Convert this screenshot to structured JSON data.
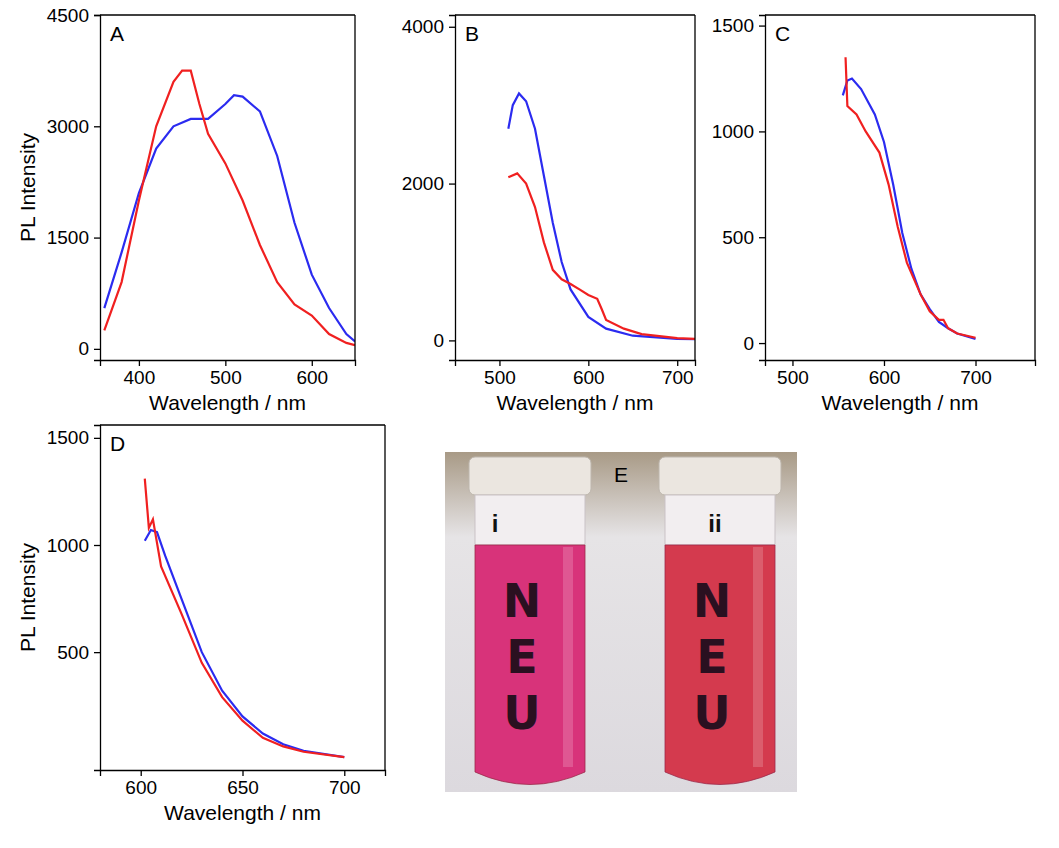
{
  "chart_data": [
    {
      "type": "line",
      "label": "A",
      "xlabel": "Wavelength / nm",
      "ylabel": "PL Intensity",
      "xlim": [
        355,
        650
      ],
      "xticks": [
        400,
        500,
        600
      ],
      "ylim": [
        -150,
        4500
      ],
      "yticks": [
        0,
        1500,
        3000,
        4500
      ],
      "series": [
        {
          "color": "#2b2bf0",
          "line_style": "solid",
          "x": [
            360,
            380,
            400,
            420,
            440,
            460,
            480,
            500,
            510,
            520,
            540,
            560,
            580,
            600,
            620,
            640,
            650
          ],
          "values": [
            550,
            1300,
            2100,
            2700,
            3000,
            3100,
            3100,
            3300,
            3420,
            3400,
            3200,
            2600,
            1700,
            1000,
            550,
            200,
            100
          ]
        },
        {
          "color": "#f02020",
          "line_style": "solid",
          "x": [
            360,
            380,
            400,
            420,
            440,
            450,
            460,
            470,
            480,
            500,
            520,
            540,
            560,
            580,
            600,
            620,
            640,
            650
          ],
          "values": [
            250,
            900,
            2000,
            3000,
            3600,
            3750,
            3750,
            3300,
            2900,
            2500,
            2000,
            1400,
            900,
            600,
            450,
            200,
            80,
            50
          ]
        }
      ]
    },
    {
      "type": "line",
      "label": "B",
      "xlabel": "Wavelength / nm",
      "xlim": [
        450,
        720
      ],
      "xticks": [
        500,
        600,
        700
      ],
      "ylim": [
        -250,
        4150
      ],
      "yticks": [
        0,
        2000,
        4000
      ],
      "series": [
        {
          "color": "#2b2bf0",
          "line_style": "solid",
          "x": [
            510,
            515,
            522,
            530,
            540,
            550,
            560,
            570,
            580,
            600,
            620,
            650,
            700,
            720
          ],
          "values": [
            2700,
            3000,
            3150,
            3050,
            2700,
            2100,
            1500,
            1000,
            650,
            300,
            150,
            60,
            20,
            15
          ]
        },
        {
          "color": "#f02020",
          "line_style": "solid",
          "x": [
            510,
            520,
            530,
            540,
            550,
            560,
            570,
            580,
            590,
            600,
            610,
            615,
            620,
            640,
            660,
            700,
            720
          ],
          "values": [
            2080,
            2130,
            2000,
            1700,
            1250,
            900,
            780,
            720,
            650,
            580,
            530,
            400,
            260,
            150,
            80,
            30,
            20
          ]
        }
      ]
    },
    {
      "type": "line",
      "label": "C",
      "xlabel": "Wavelength / nm",
      "xlim": [
        470,
        765
      ],
      "xticks": [
        500,
        600,
        700
      ],
      "ylim": [
        -80,
        1550
      ],
      "yticks": [
        0,
        500,
        1000,
        1500
      ],
      "series": [
        {
          "color": "#2b2bf0",
          "line_style": "solid",
          "x": [
            555,
            560,
            565,
            575,
            590,
            600,
            610,
            620,
            630,
            640,
            650,
            660,
            670,
            680,
            700
          ],
          "values": [
            1170,
            1240,
            1250,
            1200,
            1080,
            950,
            750,
            520,
            350,
            230,
            160,
            100,
            70,
            45,
            20
          ]
        },
        {
          "color": "#f02020",
          "line_style": "solid",
          "x": [
            558,
            560,
            570,
            580,
            595,
            605,
            615,
            625,
            640,
            650,
            660,
            665,
            670,
            680,
            700
          ],
          "values": [
            1350,
            1120,
            1080,
            1000,
            900,
            750,
            550,
            380,
            230,
            150,
            110,
            110,
            70,
            45,
            25
          ]
        }
      ]
    },
    {
      "type": "line",
      "label": "D",
      "xlabel": "Wavelength / nm",
      "ylabel": "PL Intensity",
      "xlim": [
        580,
        720
      ],
      "xticks": [
        600,
        650,
        700
      ],
      "ylim": [
        -50,
        1560
      ],
      "yticks": [
        500,
        1000,
        1500
      ],
      "series": [
        {
          "color": "#2b2bf0",
          "line_style": "solid",
          "x": [
            602,
            605,
            608,
            612,
            620,
            630,
            640,
            650,
            660,
            670,
            680,
            700
          ],
          "values": [
            1020,
            1070,
            1060,
            950,
            750,
            500,
            320,
            200,
            120,
            70,
            40,
            10
          ]
        },
        {
          "color": "#f02020",
          "line_style": "solid",
          "x": [
            602,
            604,
            606,
            610,
            620,
            630,
            640,
            650,
            660,
            670,
            680,
            700
          ],
          "values": [
            1310,
            1080,
            1120,
            900,
            680,
            450,
            290,
            180,
            100,
            60,
            35,
            10
          ]
        }
      ]
    }
  ],
  "photo": {
    "label": "E",
    "tubes": [
      {
        "label": "i",
        "text": "NEU"
      },
      {
        "label": "ii",
        "text": "NEU"
      }
    ]
  }
}
